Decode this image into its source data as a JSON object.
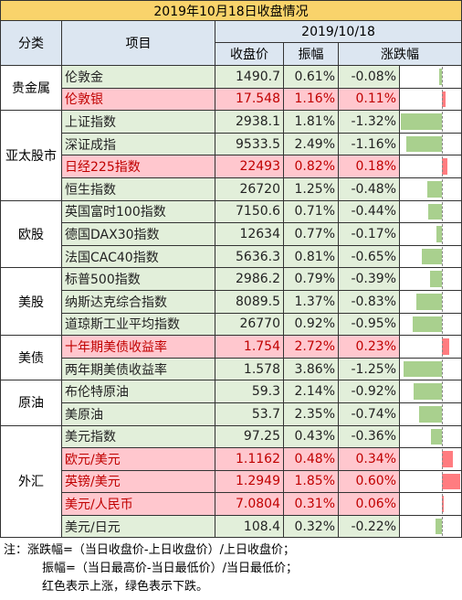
{
  "title": "2019年10月18日收盘情况",
  "header": {
    "category": "分类",
    "item": "项目",
    "date": "2019/10/18",
    "close": "收盘价",
    "amplitude": "振幅",
    "change": "涨跌幅"
  },
  "groups": [
    {
      "name": "贵金属",
      "rows": [
        [
          "伦敦金",
          "1490.7",
          "0.61%",
          "-0.08%"
        ],
        [
          "伦敦银",
          "17.548",
          "1.16%",
          "0.11%"
        ]
      ]
    },
    {
      "name": "亚太股市",
      "rows": [
        [
          "上证指数",
          "2938.1",
          "1.81%",
          "-1.32%"
        ],
        [
          "深证成指",
          "9533.5",
          "2.49%",
          "-1.16%"
        ],
        [
          "日经225指数",
          "22493",
          "0.82%",
          "0.18%"
        ],
        [
          "恒生指数",
          "26720",
          "1.25%",
          "-0.48%"
        ]
      ]
    },
    {
      "name": "欧股",
      "rows": [
        [
          "英国富时100指数",
          "7150.6",
          "0.71%",
          "-0.44%"
        ],
        [
          "德国DAX30指数",
          "12634",
          "0.77%",
          "-0.17%"
        ],
        [
          "法国CAC40指数",
          "5636.3",
          "0.81%",
          "-0.65%"
        ]
      ]
    },
    {
      "name": "美股",
      "rows": [
        [
          "标普500指数",
          "2986.2",
          "0.79%",
          "-0.39%"
        ],
        [
          "纳斯达克综合指数",
          "8089.5",
          "1.37%",
          "-0.83%"
        ],
        [
          "道琼斯工业平均指数",
          "26770",
          "0.92%",
          "-0.95%"
        ]
      ]
    },
    {
      "name": "美债",
      "rows": [
        [
          "十年期美债收益率",
          "1.754",
          "2.72%",
          "0.23%"
        ],
        [
          "两年期美债收益率",
          "1.578",
          "3.86%",
          "-1.25%"
        ]
      ]
    },
    {
      "name": "原油",
      "rows": [
        [
          "布伦特原油",
          "59.3",
          "2.14%",
          "-0.92%"
        ],
        [
          "美原油",
          "53.7",
          "2.35%",
          "-0.74%"
        ]
      ]
    },
    {
      "name": "外汇",
      "rows": [
        [
          "美元指数",
          "97.25",
          "0.43%",
          "-0.36%"
        ],
        [
          "欧元/美元",
          "1.1162",
          "0.48%",
          "0.34%"
        ],
        [
          "英镑/美元",
          "1.2949",
          "1.85%",
          "0.60%"
        ],
        [
          "美元/人民币",
          "7.0804",
          "0.31%",
          "0.06%"
        ],
        [
          "美元/日元",
          "108.4",
          "0.32%",
          "-0.22%"
        ]
      ]
    }
  ],
  "notes": [
    "注：涨跌幅=（当日收盘价-上日收盘价）/上日收盘价；",
    "振幅=（当日最高价-当日最低价）/当日最低价；",
    "红色表示上涨，绿色表示下跌。"
  ]
}
